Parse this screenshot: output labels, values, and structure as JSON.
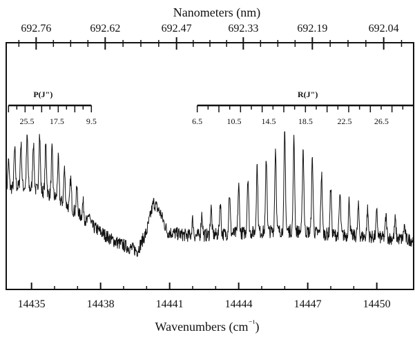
{
  "chart_data": {
    "type": "line",
    "title": "",
    "xlabel": "Wavenumbers (cm⁻¹)",
    "x2label": "Nanometers (nm)",
    "ylabel": "",
    "xlim": [
      14433.9,
      14451.6
    ],
    "x_ticks_major": [
      14435,
      14438,
      14441,
      14444,
      14447,
      14450
    ],
    "x_tick_labels": [
      "14435",
      "14438",
      "14441",
      "14444",
      "14447",
      "14450"
    ],
    "x2_ticks_major_cm": [
      14435.2,
      14438.2,
      14441.3,
      14444.2,
      14447.2,
      14450.3
    ],
    "x2_tick_labels": [
      "692.76",
      "692.62",
      "692.47",
      "692.33",
      "692.19",
      "692.04"
    ],
    "grid": false,
    "branches": [
      {
        "label": "P(J\")",
        "label_at_cm": 14435.5,
        "start_cm": 14434.0,
        "end_cm": 14437.6,
        "tick_count": 10,
        "tick_labels": [
          "25.5",
          "17.5",
          "9.5"
        ],
        "tick_label_cm": [
          14434.8,
          14436.1,
          14437.6
        ]
      },
      {
        "label": "R(J\")",
        "label_at_cm": 14447.0,
        "start_cm": 14442.2,
        "end_cm": 14451.6,
        "tick_count": 20,
        "tick_labels": [
          "6.5",
          "10.5",
          "14.5",
          "18.5",
          "22.5",
          "26.5"
        ],
        "tick_label_cm": [
          14442.2,
          14443.8,
          14445.3,
          14446.9,
          14448.6,
          14450.2
        ]
      }
    ],
    "baseline": [
      [
        14433.9,
        0.62
      ],
      [
        14434.5,
        0.64
      ],
      [
        14435.0,
        0.62
      ],
      [
        14435.5,
        0.6
      ],
      [
        14436.0,
        0.56
      ],
      [
        14436.5,
        0.5
      ],
      [
        14437.0,
        0.44
      ],
      [
        14437.5,
        0.36
      ],
      [
        14438.0,
        0.3
      ],
      [
        14438.5,
        0.24
      ],
      [
        14439.0,
        0.2
      ],
      [
        14439.6,
        0.16
      ],
      [
        14440.0,
        0.3
      ],
      [
        14440.3,
        0.52
      ],
      [
        14440.6,
        0.44
      ],
      [
        14440.9,
        0.3
      ],
      [
        14441.5,
        0.28
      ],
      [
        14442.0,
        0.27
      ],
      [
        14443.0,
        0.28
      ],
      [
        14444.0,
        0.29
      ],
      [
        14445.0,
        0.3
      ],
      [
        14446.0,
        0.31
      ],
      [
        14447.0,
        0.3
      ],
      [
        14448.0,
        0.28
      ],
      [
        14449.0,
        0.27
      ],
      [
        14450.0,
        0.26
      ],
      [
        14451.6,
        0.24
      ]
    ],
    "p_lines": {
      "start_cm": 14434.0,
      "spacing_cm": 0.27,
      "count": 14,
      "amplitudes": [
        0.2,
        0.28,
        0.32,
        0.38,
        0.35,
        0.42,
        0.36,
        0.34,
        0.3,
        0.26,
        0.22,
        0.18,
        0.12,
        0.08
      ]
    },
    "r_lines": {
      "start_cm": 14442.0,
      "spacing_cm": 0.4,
      "count": 24,
      "amplitudes": [
        0.12,
        0.16,
        0.2,
        0.24,
        0.3,
        0.35,
        0.42,
        0.5,
        0.55,
        0.62,
        0.72,
        0.68,
        0.62,
        0.55,
        0.45,
        0.36,
        0.3,
        0.26,
        0.22,
        0.2,
        0.18,
        0.16,
        0.14,
        0.1
      ]
    },
    "noise_amplitude": 0.05
  }
}
